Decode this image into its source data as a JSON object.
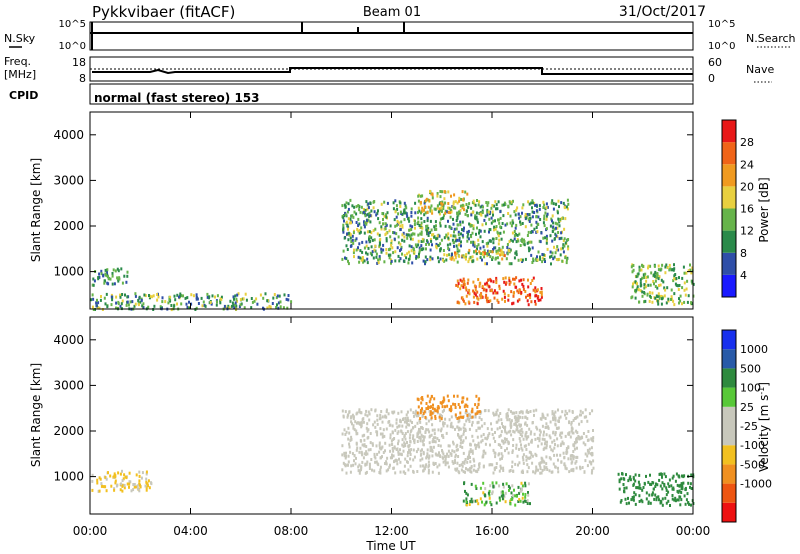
{
  "header": {
    "station": "Pykkvibaer (fitACF)",
    "beam": "Beam 01",
    "date": "31/Oct/2017"
  },
  "noise_panel": {
    "left_label": "N.Sky",
    "right_label": "N.Search",
    "ticks_left": [
      "10^5",
      "10^0"
    ],
    "ticks_right": [
      "10^5",
      "10^0"
    ]
  },
  "freq_panel": {
    "left_label_top": "Freq.",
    "left_label_bottom": "[MHz]",
    "right_label": "Nave",
    "ticks_left": [
      "18",
      "8"
    ],
    "ticks_right": [
      "60",
      "0"
    ]
  },
  "cpid_panel": {
    "label": "CPID",
    "text": "normal (fast stereo) 153"
  },
  "x_axis": {
    "label": "Time UT",
    "ticks": [
      "00:00",
      "04:00",
      "08:00",
      "12:00",
      "16:00",
      "20:00",
      "00:00"
    ]
  },
  "colors": {
    "power_scale": [
      "#1a1aff",
      "#2f4fa8",
      "#2a8a4a",
      "#66b34a",
      "#e8d040",
      "#f09a20",
      "#f06418",
      "#e81818"
    ],
    "velocity_scale": [
      "#ee1111",
      "#ee5511",
      "#f09020",
      "#f2c020",
      "#c8c8bc",
      "#c8c8bc",
      "#58c838",
      "#2e8a3e",
      "#285aa8",
      "#1830ee"
    ],
    "ground_scatter": "#c8c8bc"
  },
  "chart_data": [
    {
      "type": "heatmap",
      "title": "Power",
      "ylabel": "Slant Range [km]",
      "xlabel": "",
      "ylim": [
        180,
        4500
      ],
      "x_ticks": [
        "00:00",
        "04:00",
        "08:00",
        "12:00",
        "16:00",
        "20:00",
        "00:00"
      ],
      "y_ticks": [
        1000,
        2000,
        3000,
        4000
      ],
      "colorbar": {
        "label": "Power [dB]",
        "ticks": [
          "28",
          "24",
          "20",
          "16",
          "12",
          "8",
          "4"
        ],
        "range": [
          0,
          32
        ]
      },
      "regions": [
        {
          "t_start": 0.0,
          "t_end": 1.5,
          "range_min": 700,
          "range_max": 1100,
          "value_db": 10
        },
        {
          "t_start": 0.0,
          "t_end": 8.0,
          "range_min": 200,
          "range_max": 550,
          "value_db": 12
        },
        {
          "t_start": 10.0,
          "t_end": 19.0,
          "range_min": 1200,
          "range_max": 2600,
          "value_db": 12
        },
        {
          "t_start": 13.0,
          "t_end": 15.0,
          "range_min": 2300,
          "range_max": 2800,
          "value_db": 18
        },
        {
          "t_start": 14.0,
          "t_end": 16.5,
          "range_min": 1300,
          "range_max": 1500,
          "value_db": 20
        },
        {
          "t_start": 14.5,
          "t_end": 18.0,
          "range_min": 300,
          "range_max": 900,
          "value_db": 26
        },
        {
          "t_start": 21.5,
          "t_end": 24.0,
          "range_min": 300,
          "range_max": 1200,
          "value_db": 14
        }
      ]
    },
    {
      "type": "heatmap",
      "title": "Velocity",
      "ylabel": "Slant Range [km]",
      "xlabel": "Time UT",
      "ylim": [
        180,
        4500
      ],
      "x_ticks": [
        "00:00",
        "04:00",
        "08:00",
        "12:00",
        "16:00",
        "20:00",
        "00:00"
      ],
      "y_ticks": [
        1000,
        2000,
        3000,
        4000
      ],
      "colorbar": {
        "label": "Velocity [m s^-1]",
        "ticks": [
          "1000",
          "500",
          "100",
          "25",
          "-25",
          "-100",
          "-500",
          "-1000"
        ],
        "range": [
          -1000,
          1000
        ]
      },
      "regions": [
        {
          "t_start": 0.0,
          "t_end": 2.5,
          "range_min": 700,
          "range_max": 1150,
          "value_ms": -30
        },
        {
          "t_start": 10.0,
          "t_end": 20.0,
          "range_min": 1100,
          "range_max": 2500,
          "value_ms": 0
        },
        {
          "t_start": 13.0,
          "t_end": 15.5,
          "range_min": 2300,
          "range_max": 2800,
          "value_ms": -300
        },
        {
          "t_start": 14.8,
          "t_end": 17.5,
          "range_min": 400,
          "range_max": 900,
          "value_ms": 80
        },
        {
          "t_start": 21.0,
          "t_end": 24.0,
          "range_min": 400,
          "range_max": 1100,
          "value_ms": 300
        }
      ]
    }
  ]
}
